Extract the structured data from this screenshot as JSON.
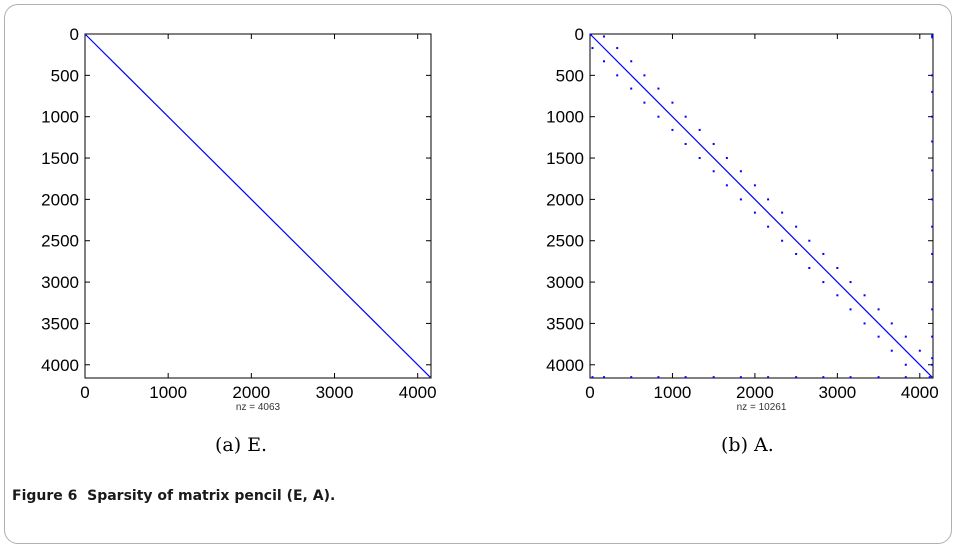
{
  "figure": {
    "caption_label": "Figure 6",
    "caption_text": "Sparsity of matrix pencil (E, A)."
  },
  "chart_data": [
    {
      "type": "scatter",
      "subtitle": "(a)  E.",
      "xlabel": "nz = 4063",
      "xlim": [
        0,
        4160
      ],
      "ylim": [
        0,
        4160
      ],
      "y_inverted": true,
      "x_ticks": [
        0,
        1000,
        2000,
        3000,
        4000
      ],
      "y_ticks": [
        0,
        500,
        1000,
        1500,
        2000,
        2500,
        3000,
        3500,
        4000
      ],
      "x_tick_labels": [
        "0",
        "1000",
        "2000",
        "3000",
        "4000"
      ],
      "y_tick_labels": [
        "0",
        "500",
        "1000",
        "1500",
        "2000",
        "2500",
        "3000",
        "3500",
        "4000"
      ],
      "color": "#0000ff",
      "nz": 4063,
      "pattern": {
        "diagonal": {
          "from": 0,
          "to": 4150
        },
        "points": []
      }
    },
    {
      "type": "scatter",
      "subtitle": "(b)  A.",
      "xlabel": "nz = 10261",
      "xlim": [
        0,
        4160
      ],
      "ylim": [
        0,
        4160
      ],
      "y_inverted": true,
      "x_ticks": [
        0,
        1000,
        2000,
        3000,
        4000
      ],
      "y_ticks": [
        0,
        500,
        1000,
        1500,
        2000,
        2500,
        3000,
        3500,
        4000
      ],
      "x_tick_labels": [
        "0",
        "1000",
        "2000",
        "3000",
        "4000"
      ],
      "y_tick_labels": [
        "0",
        "500",
        "1000",
        "1500",
        "2000",
        "2500",
        "3000",
        "3500",
        "4000"
      ],
      "color": "#0000ff",
      "nz": 10261,
      "pattern": {
        "diagonal": {
          "from": 0,
          "to": 4150
        },
        "points": [
          {
            "x": 10,
            "y": 10
          },
          {
            "x": 4150,
            "y": 20
          },
          {
            "x": 4150,
            "y": 40
          },
          {
            "x": 170,
            "y": 30
          },
          {
            "x": 330,
            "y": 170
          },
          {
            "x": 500,
            "y": 330
          },
          {
            "x": 660,
            "y": 500
          },
          {
            "x": 830,
            "y": 660
          },
          {
            "x": 1000,
            "y": 830
          },
          {
            "x": 1160,
            "y": 1000
          },
          {
            "x": 1330,
            "y": 1160
          },
          {
            "x": 1500,
            "y": 1330
          },
          {
            "x": 1660,
            "y": 1500
          },
          {
            "x": 1830,
            "y": 1660
          },
          {
            "x": 2000,
            "y": 1830
          },
          {
            "x": 2160,
            "y": 2000
          },
          {
            "x": 2330,
            "y": 2160
          },
          {
            "x": 2500,
            "y": 2330
          },
          {
            "x": 2660,
            "y": 2500
          },
          {
            "x": 2830,
            "y": 2660
          },
          {
            "x": 3000,
            "y": 2830
          },
          {
            "x": 3160,
            "y": 3000
          },
          {
            "x": 3330,
            "y": 3160
          },
          {
            "x": 3500,
            "y": 3330
          },
          {
            "x": 3660,
            "y": 3500
          },
          {
            "x": 3830,
            "y": 3660
          },
          {
            "x": 4000,
            "y": 3830
          },
          {
            "x": 30,
            "y": 170
          },
          {
            "x": 170,
            "y": 330
          },
          {
            "x": 330,
            "y": 500
          },
          {
            "x": 500,
            "y": 660
          },
          {
            "x": 660,
            "y": 830
          },
          {
            "x": 830,
            "y": 1000
          },
          {
            "x": 1000,
            "y": 1160
          },
          {
            "x": 1160,
            "y": 1330
          },
          {
            "x": 1330,
            "y": 1500
          },
          {
            "x": 1500,
            "y": 1660
          },
          {
            "x": 1660,
            "y": 1830
          },
          {
            "x": 1830,
            "y": 2000
          },
          {
            "x": 2000,
            "y": 2160
          },
          {
            "x": 2160,
            "y": 2330
          },
          {
            "x": 2330,
            "y": 2500
          },
          {
            "x": 2500,
            "y": 2660
          },
          {
            "x": 2660,
            "y": 2830
          },
          {
            "x": 2830,
            "y": 3000
          },
          {
            "x": 3000,
            "y": 3160
          },
          {
            "x": 3160,
            "y": 3330
          },
          {
            "x": 3330,
            "y": 3500
          },
          {
            "x": 3500,
            "y": 3660
          },
          {
            "x": 3660,
            "y": 3830
          },
          {
            "x": 3830,
            "y": 4000
          },
          {
            "x": 4150,
            "y": 500
          },
          {
            "x": 4150,
            "y": 700
          },
          {
            "x": 4150,
            "y": 1000
          },
          {
            "x": 4150,
            "y": 1300
          },
          {
            "x": 4150,
            "y": 1650
          },
          {
            "x": 4150,
            "y": 2000
          },
          {
            "x": 4150,
            "y": 2330
          },
          {
            "x": 4150,
            "y": 2660
          },
          {
            "x": 4150,
            "y": 3000
          },
          {
            "x": 4150,
            "y": 3330
          },
          {
            "x": 4150,
            "y": 3660
          },
          {
            "x": 4150,
            "y": 3920
          },
          {
            "x": 4150,
            "y": 4000
          },
          {
            "x": 30,
            "y": 4150
          },
          {
            "x": 170,
            "y": 4150
          },
          {
            "x": 500,
            "y": 4150
          },
          {
            "x": 830,
            "y": 4150
          },
          {
            "x": 1160,
            "y": 4150
          },
          {
            "x": 1500,
            "y": 4150
          },
          {
            "x": 1830,
            "y": 4150
          },
          {
            "x": 2160,
            "y": 4150
          },
          {
            "x": 2500,
            "y": 4150
          },
          {
            "x": 2830,
            "y": 4150
          },
          {
            "x": 3160,
            "y": 4150
          },
          {
            "x": 3500,
            "y": 4150
          },
          {
            "x": 3830,
            "y": 4150
          },
          {
            "x": 4120,
            "y": 4150
          }
        ]
      }
    }
  ]
}
